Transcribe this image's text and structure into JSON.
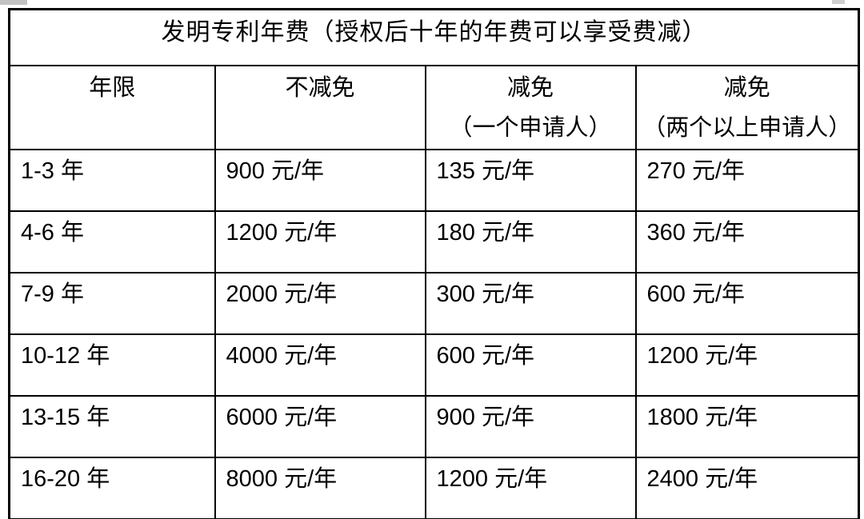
{
  "table": {
    "title": "发明专利年费（授权后十年的年费可以享受费减）",
    "columns": [
      {
        "label": "年限",
        "sub": ""
      },
      {
        "label": "不减免",
        "sub": ""
      },
      {
        "label": "减免",
        "sub": "（一个申请人）"
      },
      {
        "label": "减免",
        "sub": "（两个以上申请人）"
      }
    ],
    "rows": [
      {
        "years": "1-3 年",
        "no_reduction": "900 元/年",
        "reduction_single": "135 元/年",
        "reduction_multi": "270 元/年"
      },
      {
        "years": "4-6 年",
        "no_reduction": "1200 元/年",
        "reduction_single": "180 元/年",
        "reduction_multi": "360 元/年"
      },
      {
        "years": "7-9 年",
        "no_reduction": "2000 元/年",
        "reduction_single": "300 元/年",
        "reduction_multi": "600 元/年"
      },
      {
        "years": "10-12 年",
        "no_reduction": "4000 元/年",
        "reduction_single": "600 元/年",
        "reduction_multi": "1200 元/年"
      },
      {
        "years": "13-15 年",
        "no_reduction": "6000 元/年",
        "reduction_single": "900 元/年",
        "reduction_multi": "1800 元/年"
      },
      {
        "years": "16-20 年",
        "no_reduction": "8000 元/年",
        "reduction_single": "1200 元/年",
        "reduction_multi": "2400 元/年"
      }
    ],
    "colors": {
      "border": "#000000",
      "text": "#000000",
      "background": "#ffffff"
    }
  }
}
